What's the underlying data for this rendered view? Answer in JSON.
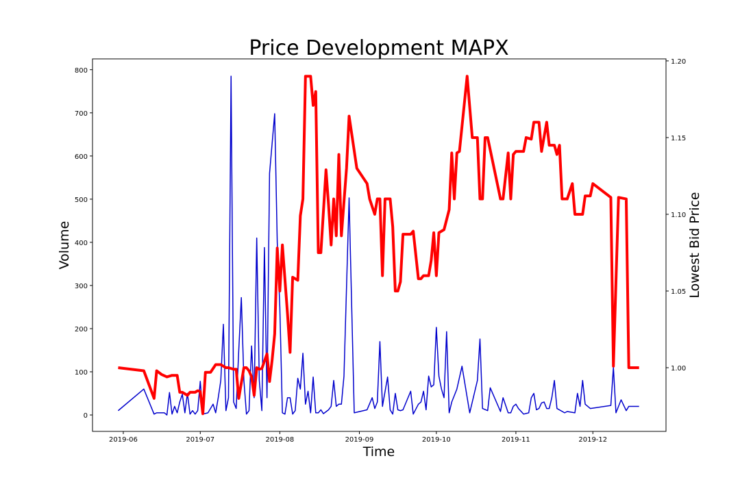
{
  "chart_data": {
    "type": "line",
    "title": "Price Development MAPX",
    "xlabel": "Time",
    "ylabel": "Volume",
    "y2label": "Lowest Bid Price",
    "xlim": [
      -12,
      211.5
    ],
    "xticks": [
      {
        "value": 0,
        "label": "2019-06"
      },
      {
        "value": 30,
        "label": "2019-07"
      },
      {
        "value": 61,
        "label": "2019-08"
      },
      {
        "value": 92,
        "label": "2019-09"
      },
      {
        "value": 122,
        "label": "2019-10"
      },
      {
        "value": 153,
        "label": "2019-11"
      },
      {
        "value": 183,
        "label": "2019-12"
      }
    ],
    "ylim": [
      -38,
      825
    ],
    "yticks": [
      0,
      100,
      200,
      300,
      400,
      500,
      600,
      700,
      800
    ],
    "y2lim": [
      0.9585,
      1.2013
    ],
    "y2ticks": [
      {
        "value": 1.0,
        "label": "1.00"
      },
      1.05,
      {
        "value": 1.1,
        "label": "1.10"
      },
      1.15,
      {
        "value": 1.2,
        "label": "1.20"
      }
    ],
    "ylabel_color": "#0000cc",
    "y2label_color": "#e41a1a",
    "series": [
      {
        "name": "Volume",
        "color": "#0000cc",
        "width": 1.5,
        "x": [
          -2,
          8,
          12,
          13,
          16,
          17,
          18,
          19,
          20,
          21,
          22,
          23,
          24,
          25,
          26,
          27,
          28,
          29,
          30,
          31,
          33,
          35,
          36,
          37,
          38,
          39,
          40,
          41,
          42,
          43,
          44,
          45,
          46,
          47,
          48,
          49,
          50,
          51,
          52,
          53,
          54,
          55,
          56,
          57,
          59,
          60,
          61,
          62,
          63,
          64,
          65,
          66,
          67,
          68,
          69,
          70,
          71,
          72,
          73,
          74,
          75,
          76,
          77,
          78,
          80,
          81,
          82,
          83,
          84,
          85,
          86,
          88,
          90,
          95,
          97,
          98,
          99,
          100,
          101,
          103,
          104,
          105,
          106,
          107,
          108,
          109,
          112,
          113,
          115,
          116,
          117,
          118,
          119,
          120,
          121,
          122,
          123,
          124,
          125,
          126,
          127,
          128,
          130,
          132,
          135,
          136,
          138,
          139,
          140,
          142,
          143,
          147,
          148,
          150,
          151,
          152,
          153,
          154,
          156,
          158,
          159,
          160,
          161,
          162,
          163,
          164,
          165,
          166,
          167,
          168,
          169,
          172,
          173,
          176,
          177,
          178,
          179,
          180,
          182,
          190,
          191,
          192,
          194,
          196,
          197,
          201
        ],
        "values": [
          10,
          60,
          2,
          5,
          5,
          0,
          52,
          2,
          20,
          5,
          30,
          48,
          5,
          50,
          2,
          10,
          2,
          10,
          78,
          2,
          5,
          25,
          5,
          40,
          80,
          210,
          10,
          40,
          785,
          30,
          15,
          150,
          272,
          80,
          2,
          10,
          160,
          40,
          410,
          80,
          10,
          388,
          40,
          560,
          698,
          400,
          250,
          5,
          2,
          40,
          40,
          2,
          10,
          85,
          60,
          143,
          25,
          55,
          5,
          88,
          5,
          5,
          12,
          3,
          12,
          20,
          80,
          20,
          25,
          25,
          90,
          503,
          5,
          12,
          40,
          15,
          30,
          170,
          20,
          88,
          12,
          2,
          50,
          12,
          10,
          12,
          55,
          2,
          25,
          30,
          55,
          12,
          90,
          65,
          70,
          203,
          90,
          60,
          40,
          193,
          5,
          30,
          60,
          113,
          5,
          30,
          80,
          176,
          15,
          10,
          63,
          8,
          40,
          5,
          5,
          20,
          25,
          15,
          2,
          5,
          40,
          50,
          12,
          15,
          28,
          30,
          15,
          15,
          40,
          80,
          15,
          5,
          8,
          5,
          50,
          20,
          80,
          25,
          15,
          22,
          110,
          5,
          35,
          10,
          20,
          20
        ]
      },
      {
        "name": "Lowest Bid Price",
        "color": "#ff0000",
        "width": 4,
        "axis": "y2",
        "x": [
          -2,
          8,
          12,
          13,
          15,
          17,
          18,
          19,
          21,
          22,
          23,
          25,
          26,
          28,
          29,
          30,
          31,
          32,
          34,
          36,
          38,
          40,
          41,
          43,
          44,
          45,
          47,
          48,
          49,
          50,
          51,
          52,
          53,
          54,
          56,
          57,
          58,
          59,
          60,
          61,
          62,
          64,
          65,
          66,
          68,
          69,
          70,
          71,
          73,
          74,
          75,
          76,
          77,
          79,
          80,
          81,
          82,
          83,
          84,
          85,
          87,
          88,
          91,
          95,
          96,
          98,
          99,
          100,
          101,
          102,
          104,
          105,
          106,
          107,
          108,
          109,
          111,
          112,
          113,
          115,
          116,
          117,
          119,
          120,
          121,
          122,
          123,
          124,
          125,
          127,
          128,
          129,
          130,
          131,
          134,
          136,
          138,
          139,
          140,
          141,
          142,
          147,
          148,
          150,
          151,
          152,
          153,
          156,
          157,
          159,
          160,
          162,
          163,
          165,
          166,
          168,
          169,
          170,
          171,
          173,
          175,
          176,
          179,
          180,
          182,
          183,
          190,
          191,
          193,
          196,
          197,
          201
        ],
        "values": [
          1.0,
          0.998,
          0.98,
          0.998,
          0.9955,
          0.994,
          0.9945,
          0.995,
          0.995,
          0.984,
          0.984,
          0.982,
          0.984,
          0.984,
          0.985,
          0.9845,
          0.97,
          0.997,
          0.997,
          1.002,
          1.002,
          1.0,
          1.0,
          0.999,
          0.999,
          0.98,
          1.0,
          1.0,
          0.998,
          0.994,
          0.982,
          1.0,
          0.999,
          0.9995,
          1.009,
          0.991,
          1.005,
          1.022,
          1.078,
          1.05,
          1.08,
          1.035,
          1.01,
          1.059,
          1.057,
          1.099,
          1.11,
          1.19,
          1.19,
          1.171,
          1.18,
          1.075,
          1.075,
          1.129,
          1.106,
          1.08,
          1.11,
          1.086,
          1.139,
          1.086,
          1.13,
          1.164,
          1.13,
          1.12,
          1.11,
          1.1,
          1.11,
          1.11,
          1.06,
          1.11,
          1.11,
          1.092,
          1.05,
          1.05,
          1.056,
          1.087,
          1.087,
          1.087,
          1.089,
          1.058,
          1.058,
          1.06,
          1.06,
          1.07,
          1.088,
          1.06,
          1.088,
          1.089,
          1.09,
          1.103,
          1.14,
          1.11,
          1.14,
          1.141,
          1.19,
          1.15,
          1.15,
          1.11,
          1.11,
          1.15,
          1.15,
          1.11,
          1.11,
          1.14,
          1.11,
          1.139,
          1.141,
          1.141,
          1.15,
          1.149,
          1.16,
          1.16,
          1.141,
          1.16,
          1.145,
          1.145,
          1.139,
          1.145,
          1.11,
          1.11,
          1.12,
          1.1,
          1.1,
          1.112,
          1.112,
          1.12,
          1.111,
          1.001,
          1.111,
          1.11,
          1.0,
          1.0
        ]
      }
    ]
  }
}
